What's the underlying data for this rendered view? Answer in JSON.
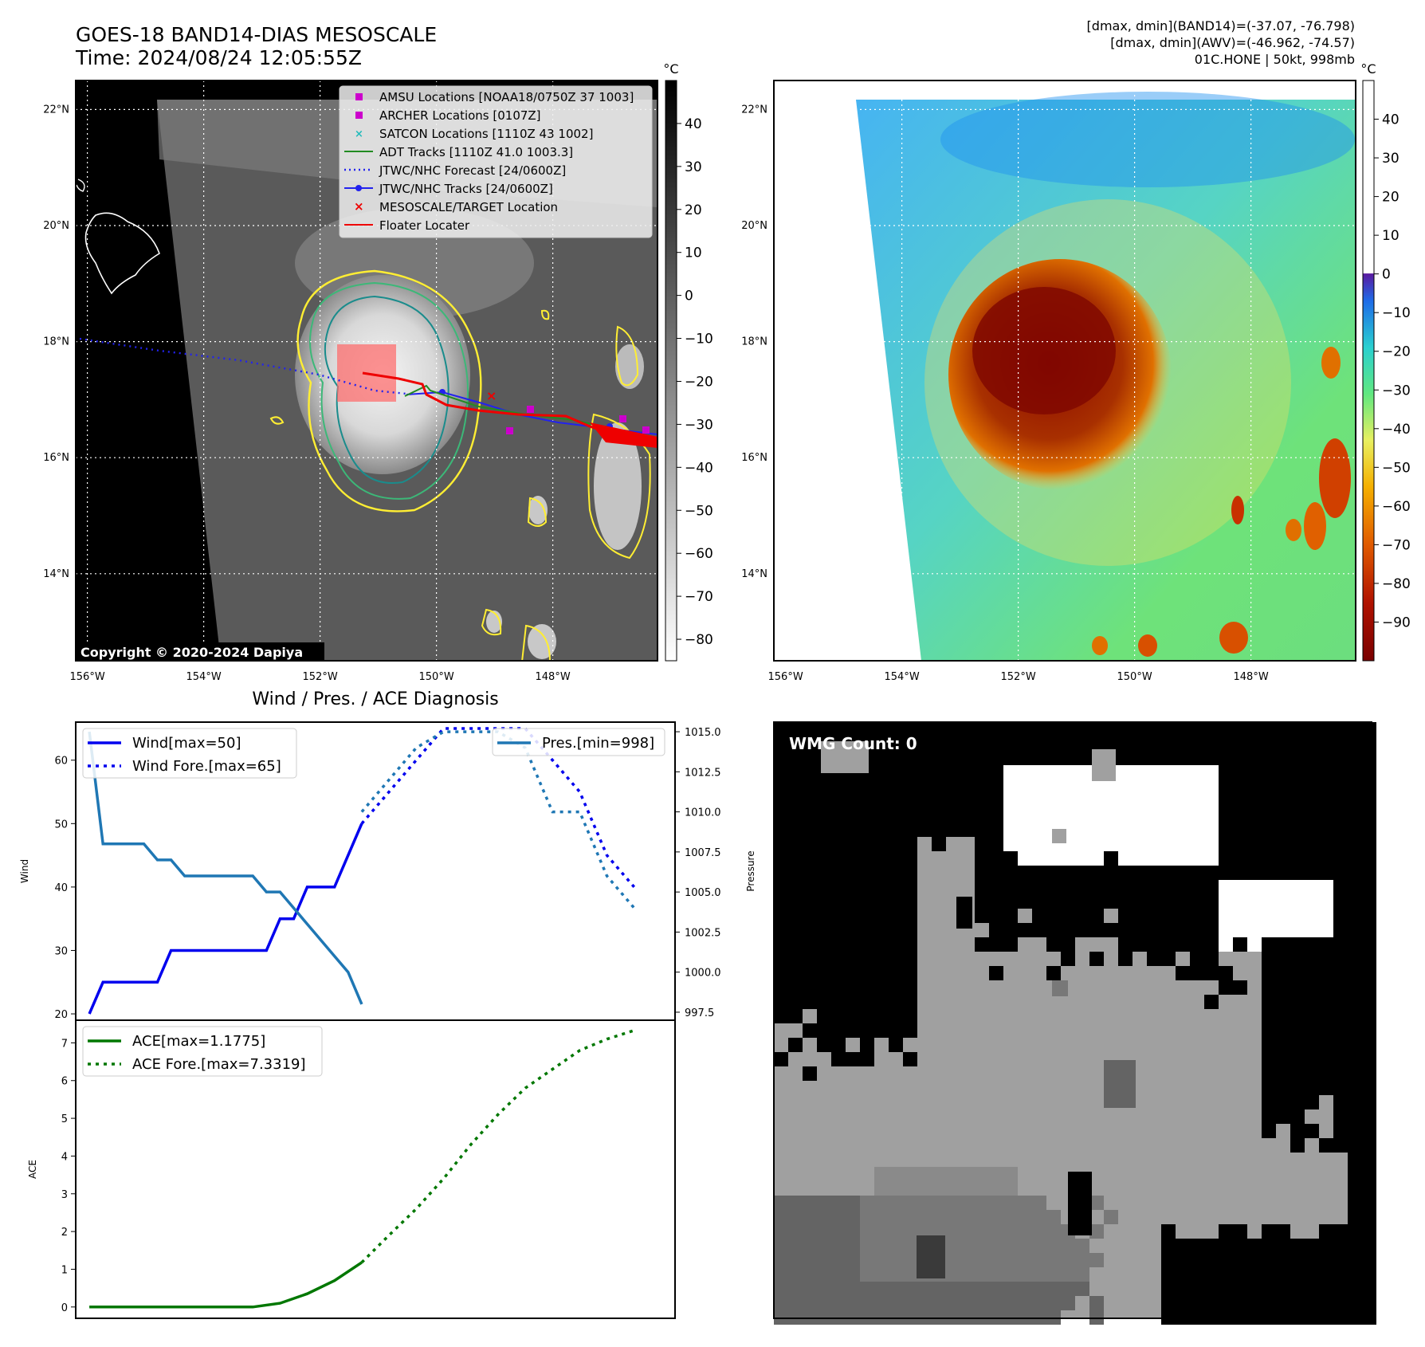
{
  "header": {
    "title_line1": "GOES-18 BAND14-DIAS MESOSCALE",
    "title_line2": "Time: 2024/08/24 12:05:55Z",
    "info_line1": "[dmax, dmin](BAND14)=(-37.07, -76.798)",
    "info_line2": "[dmax, dmin](AWV)=(-46.962, -74.57)",
    "info_line3": "01C.HONE | 50kt, 998mb"
  },
  "copyright": "Copyright © 2020-2024 Dapiya",
  "map": {
    "lon_labels": [
      "156°W",
      "154°W",
      "152°W",
      "150°W",
      "148°W"
    ],
    "lon_values": [
      -156,
      -154,
      -152,
      -150,
      -148
    ],
    "lat_labels": [
      "22°N",
      "20°N",
      "18°N",
      "16°N",
      "14°N"
    ],
    "lat_values": [
      22,
      20,
      18,
      16,
      14
    ],
    "lon_range": [
      -156.2,
      -146.2
    ],
    "lat_range": [
      12.5,
      22.5
    ]
  },
  "legend": {
    "amsu": "AMSU Locations [NOAA18/0750Z 37 1003]",
    "archer": "ARCHER Locations [0107Z]",
    "satcon": "SATCON Locations [1110Z 43 1002]",
    "adt": "ADT Tracks [1110Z 41.0 1003.3]",
    "jtwc_forecast": "JTWC/NHC Forecast [24/0600Z]",
    "jtwc_tracks": "JTWC/NHC Tracks [24/0600Z]",
    "target": "MESOSCALE/TARGET Location",
    "floater": "Floater Locater"
  },
  "colorbar1": {
    "unit": "°C",
    "tick_labels": [
      "40",
      "30",
      "20",
      "10",
      "0",
      "−10",
      "−20",
      "−30",
      "−40",
      "−50",
      "−60",
      "−70",
      "−80"
    ],
    "ticks": [
      40,
      30,
      20,
      10,
      0,
      -10,
      -20,
      -30,
      -40,
      -50,
      -60,
      -70,
      -80
    ],
    "range": [
      -85,
      50
    ]
  },
  "colorbar2": {
    "unit": "°C",
    "tick_labels": [
      "40",
      "30",
      "20",
      "10",
      "0",
      "−10",
      "−20",
      "−30",
      "−40",
      "−50",
      "−60",
      "−70",
      "−80",
      "−90"
    ],
    "ticks": [
      40,
      30,
      20,
      10,
      0,
      -10,
      -20,
      -30,
      -40,
      -50,
      -60,
      -70,
      -80,
      -90
    ],
    "range": [
      -100,
      50
    ]
  },
  "wmg": {
    "label": "WMG Count: 0"
  },
  "colors": {
    "wind": "#0000ee",
    "pressure": "#1f77b4",
    "ace": "#007700",
    "amsu": "#cc00cc",
    "satcon": "#22bbbb",
    "adt": "#228b22",
    "target": "#ee0000",
    "floater": "#ee0000"
  },
  "chart_data": [
    {
      "type": "line",
      "title": "Wind / Pres. / ACE Diagnosis",
      "ylabel": "Wind",
      "y2label": "Pressure",
      "ylim": [
        19,
        66
      ],
      "y2lim": [
        997,
        1015.6
      ],
      "xlim": [
        -0.5,
        21.5
      ],
      "yticks": [
        20,
        30,
        40,
        50,
        60
      ],
      "y2ticks": [
        997.5,
        1000.0,
        1002.5,
        1005.0,
        1007.5,
        1010.0,
        1012.5,
        1015.0
      ],
      "y2tick_labels": [
        "997.5",
        "1000.0",
        "1002.5",
        "1005.0",
        "1007.5",
        "1010.0",
        "1012.5",
        "1015.0"
      ],
      "legend_left": [
        "Wind[max=50]",
        "Wind Fore.[max=65]"
      ],
      "legend_right": [
        "Pres.[min=998]"
      ],
      "series": [
        {
          "name": "Wind[max=50]",
          "style": "solid",
          "axis": "left",
          "x": [
            0,
            0.5,
            1,
            1.5,
            2,
            2.5,
            3,
            3.5,
            4,
            4.5,
            5,
            5.5,
            6,
            6.5,
            7,
            7.5,
            8,
            8.5,
            9,
            9.5,
            10
          ],
          "y": [
            20,
            25,
            25,
            25,
            25,
            25,
            30,
            30,
            30,
            30,
            30,
            30,
            30,
            30,
            35,
            35,
            40,
            40,
            40,
            45,
            50
          ]
        },
        {
          "name": "Wind Fore.[max=65]",
          "style": "dotted",
          "axis": "left",
          "x": [
            10,
            11,
            12,
            13,
            14,
            15,
            16,
            17,
            18,
            19,
            20
          ],
          "y": [
            50,
            55,
            60,
            65,
            65,
            65,
            65,
            60,
            55,
            45,
            40
          ]
        },
        {
          "name": "Pres.[min=998]",
          "style": "solid",
          "axis": "right",
          "x": [
            0,
            0.5,
            1,
            1.5,
            2,
            2.5,
            3,
            3.5,
            4,
            4.5,
            5,
            5.5,
            6,
            6.5,
            7,
            7.5,
            8,
            8.5,
            9,
            9.5,
            10
          ],
          "y": [
            1015,
            1008,
            1008,
            1008,
            1008,
            1007,
            1007,
            1006,
            1006,
            1006,
            1006,
            1006,
            1006,
            1005,
            1005,
            1004,
            1003,
            1002,
            1001,
            1000,
            998
          ]
        },
        {
          "name": "",
          "style": "dotted",
          "axis": "right",
          "x": [
            10,
            11,
            12,
            13,
            14,
            15,
            16,
            17,
            18,
            19,
            20
          ],
          "y": [
            1010,
            1012,
            1014,
            1015,
            1015,
            1015,
            1014,
            1010,
            1010,
            1006,
            1004
          ]
        }
      ]
    },
    {
      "type": "line",
      "ylabel": "ACE",
      "ylim": [
        -0.3,
        7.6
      ],
      "xlim": [
        -0.5,
        21.5
      ],
      "yticks": [
        0,
        1,
        2,
        3,
        4,
        5,
        6,
        7
      ],
      "legend": [
        "ACE[max=1.1775]",
        "ACE Fore.[max=7.3319]"
      ],
      "series": [
        {
          "name": "ACE[max=1.1775]",
          "style": "solid",
          "x": [
            0,
            1,
            2,
            3,
            4,
            5,
            6,
            7,
            8,
            9,
            10
          ],
          "y": [
            0,
            0,
            0,
            0,
            0,
            0,
            0,
            0.1,
            0.35,
            0.7,
            1.18
          ]
        },
        {
          "name": "ACE Fore.[max=7.3319]",
          "style": "dotted",
          "x": [
            10,
            11,
            12,
            13,
            14,
            15,
            16,
            17,
            18,
            19,
            20
          ],
          "y": [
            1.18,
            1.9,
            2.6,
            3.4,
            4.3,
            5.1,
            5.8,
            6.3,
            6.8,
            7.1,
            7.33
          ]
        }
      ]
    }
  ]
}
